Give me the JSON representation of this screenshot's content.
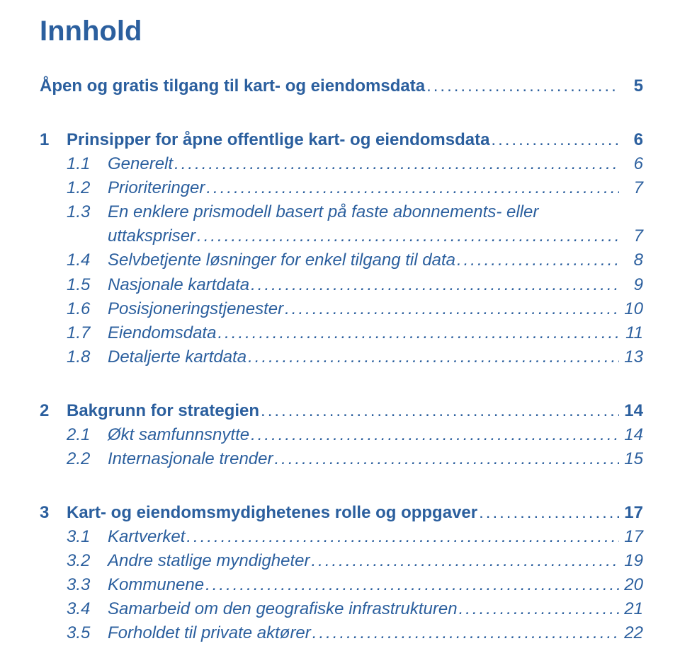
{
  "title": "Innhold",
  "colors": {
    "text": "#2b5f9e",
    "background": "#ffffff"
  },
  "typography": {
    "title_fontsize": 40,
    "entry_fontsize": 24,
    "font_family": "Myriad Pro / Segoe UI / Helvetica"
  },
  "sections": [
    {
      "entries": [
        {
          "type": "link",
          "num": "",
          "label": "Åpen og gratis tilgang til kart- og eiendomsdata",
          "page": "5"
        }
      ]
    },
    {
      "entries": [
        {
          "type": "heading",
          "num": "1",
          "label": "Prinsipper for åpne offentlige kart- og eiendomsdata",
          "page": "6"
        },
        {
          "type": "sub",
          "num": "1.1",
          "label": "Generelt",
          "page": "6"
        },
        {
          "type": "sub",
          "num": "1.2",
          "label": "Prioriteringer",
          "page": "7"
        },
        {
          "type": "sub",
          "num": "1.3",
          "label": "En enklere prismodell basert på faste abonnements- eller",
          "page": "",
          "nobreak": true
        },
        {
          "type": "sub",
          "num": "",
          "label": "uttakspriser",
          "page": "7",
          "continuation": true
        },
        {
          "type": "sub",
          "num": "1.4",
          "label": "Selvbetjente løsninger for enkel tilgang til data",
          "page": "8"
        },
        {
          "type": "sub",
          "num": "1.5",
          "label": "Nasjonale kartdata",
          "page": "9"
        },
        {
          "type": "sub",
          "num": "1.6",
          "label": "Posisjoneringstjenester",
          "page": "10"
        },
        {
          "type": "sub",
          "num": "1.7",
          "label": "Eiendomsdata",
          "page": "11"
        },
        {
          "type": "sub",
          "num": "1.8",
          "label": "Detaljerte kartdata",
          "page": "13"
        }
      ]
    },
    {
      "entries": [
        {
          "type": "heading",
          "num": "2",
          "label": "Bakgrunn for strategien",
          "page": "14"
        },
        {
          "type": "sub",
          "num": "2.1",
          "label": "Økt samfunnsnytte",
          "page": "14"
        },
        {
          "type": "sub",
          "num": "2.2",
          "label": "Internasjonale trender",
          "page": "15"
        }
      ]
    },
    {
      "entries": [
        {
          "type": "heading",
          "num": "3",
          "label": "Kart- og eiendomsmydighetenes rolle og oppgaver",
          "page": "17"
        },
        {
          "type": "sub",
          "num": "3.1",
          "label": "Kartverket",
          "page": "17"
        },
        {
          "type": "sub",
          "num": "3.2",
          "label": "Andre statlige myndigheter",
          "page": "19"
        },
        {
          "type": "sub",
          "num": "3.3",
          "label": "Kommunene",
          "page": "20"
        },
        {
          "type": "sub",
          "num": "3.4",
          "label": "Samarbeid om den geografiske infrastrukturen",
          "page": "21"
        },
        {
          "type": "sub",
          "num": "3.5",
          "label": "Forholdet til private aktører",
          "page": "22"
        }
      ]
    }
  ]
}
